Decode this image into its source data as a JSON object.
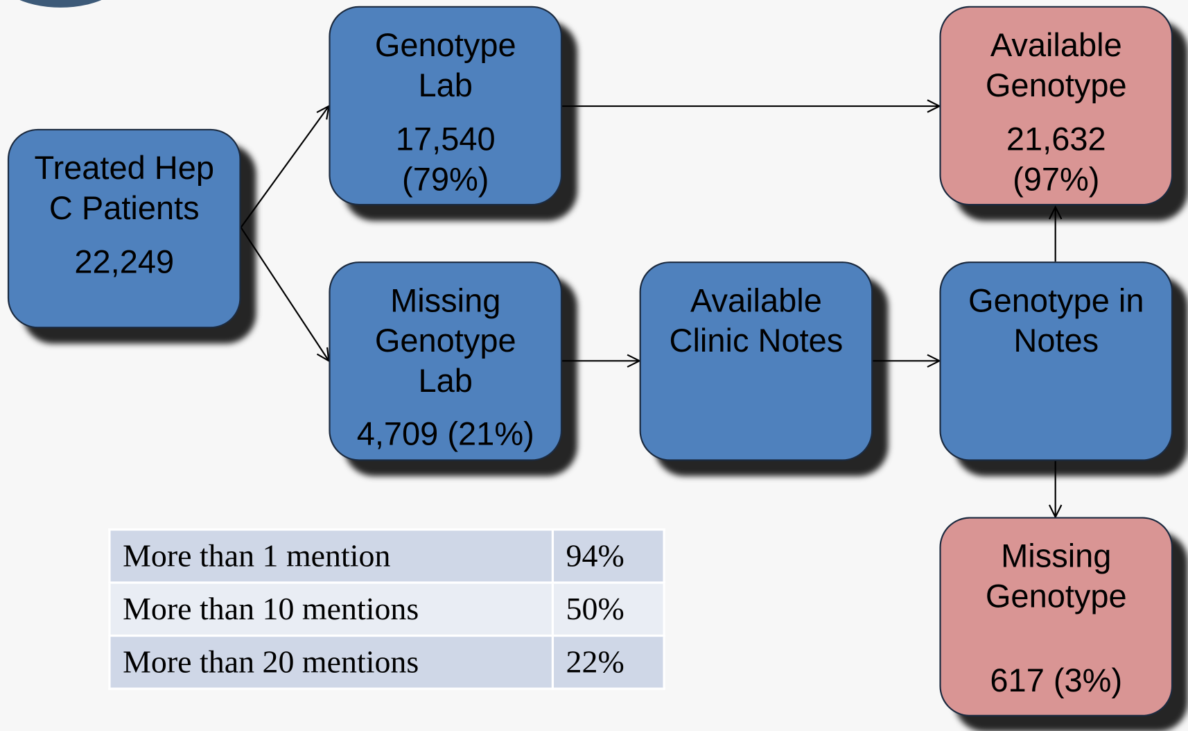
{
  "nodes": [
    {
      "label": "Treated Hep C Patients",
      "count": "22,249"
    },
    {
      "label": "Genotype Lab",
      "count": "17,540",
      "percent": "(79%)"
    },
    {
      "label": "Missing Genotype Lab",
      "count": "4,709 (21%)"
    },
    {
      "label": "Available Clinic Notes"
    },
    {
      "label": "Genotype in Notes"
    },
    {
      "label": "Available Genotype",
      "count": "21,632",
      "percent": "(97%)"
    },
    {
      "label": "Missing Genotype",
      "count": "617 (3%)"
    }
  ],
  "table": {
    "rows": [
      [
        "More than 1 mention",
        "94%"
      ],
      [
        "More than 10 mentions",
        "50%"
      ],
      [
        "More than 20 mentions",
        "22%"
      ]
    ]
  }
}
